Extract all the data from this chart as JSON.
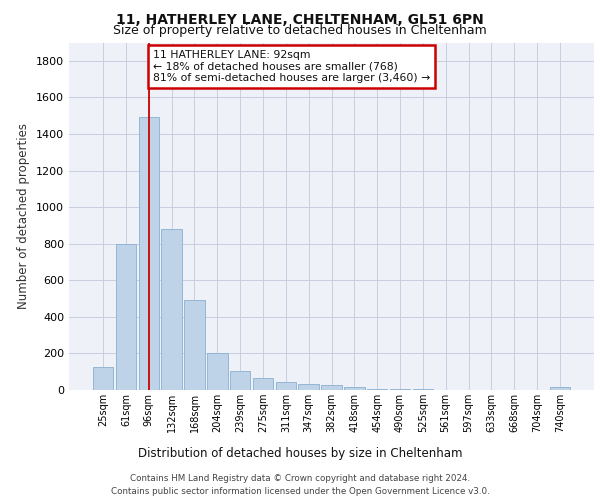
{
  "title1": "11, HATHERLEY LANE, CHELTENHAM, GL51 6PN",
  "title2": "Size of property relative to detached houses in Cheltenham",
  "xlabel": "Distribution of detached houses by size in Cheltenham",
  "ylabel": "Number of detached properties",
  "categories": [
    "25sqm",
    "61sqm",
    "96sqm",
    "132sqm",
    "168sqm",
    "204sqm",
    "239sqm",
    "275sqm",
    "311sqm",
    "347sqm",
    "382sqm",
    "418sqm",
    "454sqm",
    "490sqm",
    "525sqm",
    "561sqm",
    "597sqm",
    "633sqm",
    "668sqm",
    "704sqm",
    "740sqm"
  ],
  "values": [
    125,
    800,
    1490,
    880,
    490,
    205,
    105,
    65,
    45,
    35,
    25,
    15,
    8,
    5,
    3,
    2,
    1,
    1,
    1,
    1,
    15
  ],
  "bar_color": "#bed3e8",
  "bar_edge_color": "#8ab0d0",
  "red_line_x": 2,
  "annotation_text": "11 HATHERLEY LANE: 92sqm\n← 18% of detached houses are smaller (768)\n81% of semi-detached houses are larger (3,460) →",
  "annotation_box_color": "#ffffff",
  "annotation_box_edge": "#cc0000",
  "footer_text": "Contains HM Land Registry data © Crown copyright and database right 2024.\nContains public sector information licensed under the Open Government Licence v3.0.",
  "ylim": [
    0,
    1900
  ],
  "plot_bg_color": "#eef2f8",
  "grid_color": "#c8cee0"
}
